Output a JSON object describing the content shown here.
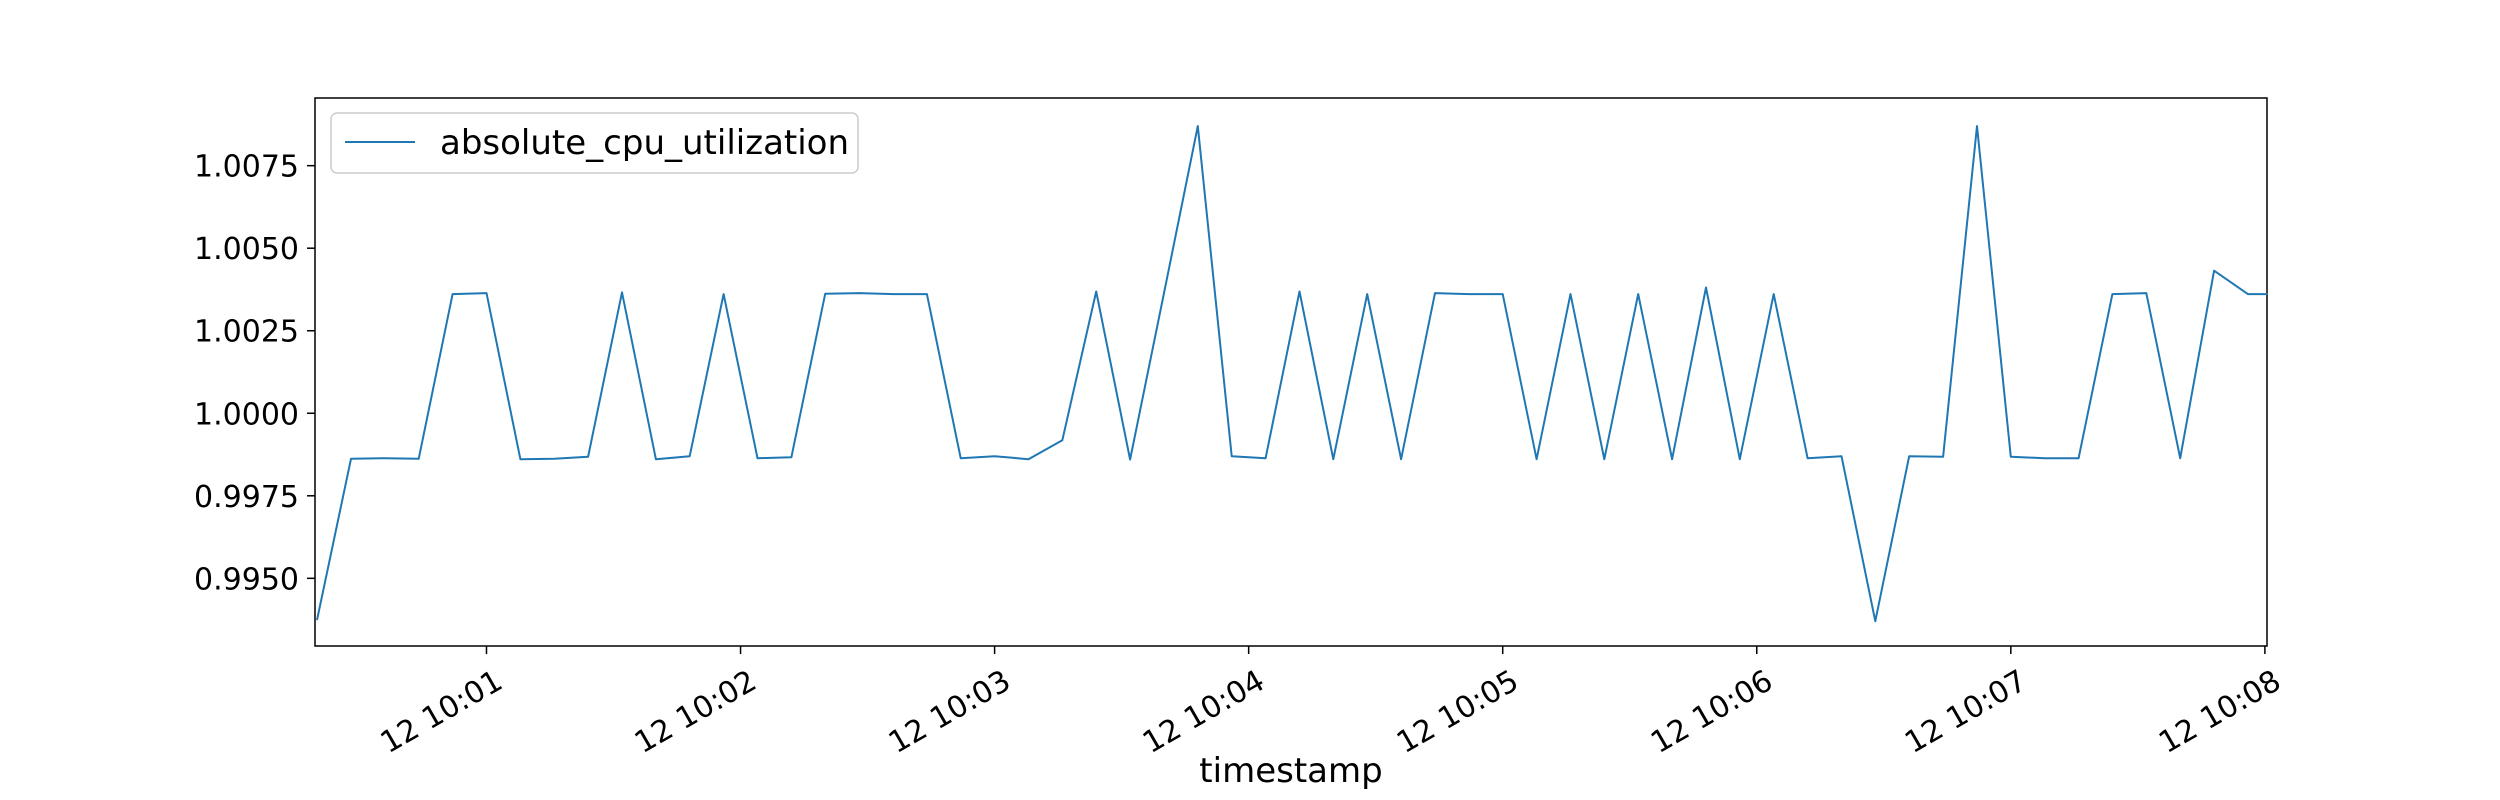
{
  "chart_data": {
    "type": "line",
    "title": "",
    "xlabel": "timestamp",
    "ylabel": "",
    "x_tick_labels": [
      "12 10:01",
      "12 10:02",
      "12 10:03",
      "12 10:04",
      "12 10:05",
      "12 10:06",
      "12 10:07",
      "12 10:08"
    ],
    "x_ticks_seconds": [
      60,
      120,
      180,
      240,
      300,
      360,
      420,
      480
    ],
    "xlim_seconds": [
      19.5,
      480.5
    ],
    "y_tick_labels": [
      "0.9950",
      "0.9975",
      "1.0000",
      "1.0025",
      "1.0050",
      "1.0075"
    ],
    "y_ticks": [
      0.995,
      0.9975,
      1.0,
      1.0025,
      1.005,
      1.0075
    ],
    "ylim": [
      0.99295,
      1.00955
    ],
    "grid": false,
    "legend_position": "upper-left",
    "series_color": "#1f77b4",
    "series": [
      {
        "name": "absolute_cpu_utilization",
        "x_seconds": [
          20,
          28,
          36,
          44,
          52,
          60,
          68,
          76,
          84,
          92,
          100,
          108,
          116,
          124,
          132,
          140,
          148,
          156,
          164,
          172,
          180,
          188,
          196,
          204,
          212,
          220,
          228,
          236,
          244,
          252,
          260,
          268,
          276,
          284,
          292,
          300,
          308,
          316,
          324,
          332,
          340,
          348,
          356,
          364,
          372,
          380,
          388,
          396,
          404,
          412,
          420,
          428,
          436,
          444,
          452,
          460,
          468,
          476,
          481
        ],
        "values": [
          0.99375,
          0.99862,
          0.99864,
          0.99862,
          1.00361,
          1.00364,
          0.99861,
          0.99862,
          0.99868,
          1.00366,
          0.99861,
          0.9987,
          1.00361,
          0.99864,
          0.99867,
          1.00362,
          1.00364,
          1.00361,
          1.00361,
          0.99864,
          0.9987,
          0.99861,
          0.99918,
          1.00369,
          0.9986,
          1.00364,
          1.0087,
          0.9987,
          0.99864,
          1.00369,
          0.99861,
          1.00361,
          0.99861,
          1.00364,
          1.00361,
          1.00361,
          0.99861,
          1.00361,
          0.99861,
          1.00361,
          0.99861,
          1.00381,
          0.99861,
          1.00361,
          0.99864,
          0.9987,
          0.9937,
          0.9987,
          0.99868,
          1.0087,
          0.99868,
          0.99864,
          0.99864,
          1.00361,
          1.00364,
          0.99864,
          1.00432,
          1.00361,
          1.00361
        ]
      }
    ]
  }
}
